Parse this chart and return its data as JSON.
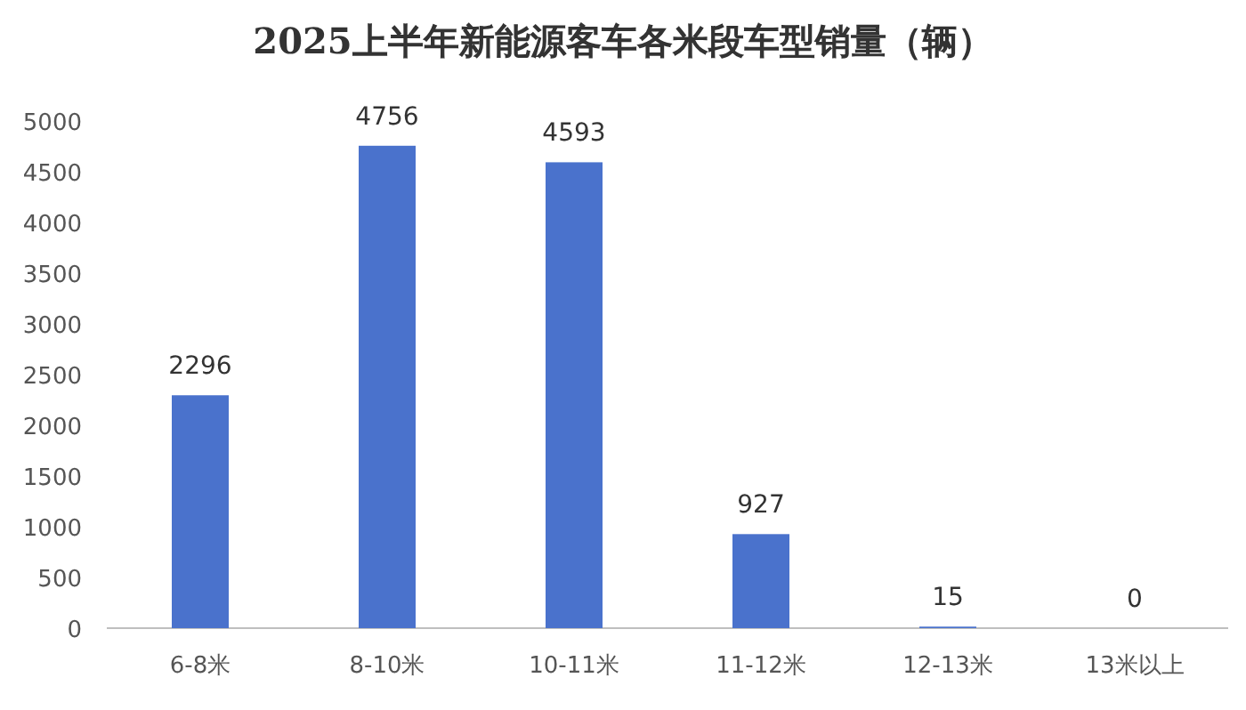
{
  "chart_data": {
    "type": "bar",
    "title": "2025上半年新能源客车各米段车型销量（辆）",
    "categories": [
      "6-8米",
      "8-10米",
      "10-11米",
      "11-12米",
      "12-13米",
      "13米以上"
    ],
    "values": [
      2296,
      4756,
      4593,
      927,
      15,
      0
    ],
    "color": "#4a72cc",
    "ylim": [
      0,
      5000
    ],
    "yticks": [
      0,
      500,
      1000,
      1500,
      2000,
      2500,
      3000,
      3500,
      4000,
      4500,
      5000
    ],
    "data_labels": true
  }
}
